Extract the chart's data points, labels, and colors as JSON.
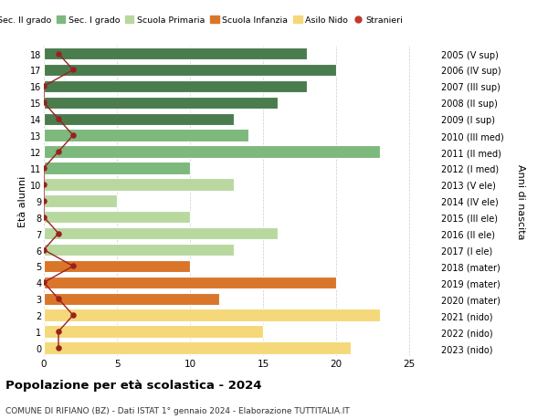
{
  "ages": [
    18,
    17,
    16,
    15,
    14,
    13,
    12,
    11,
    10,
    9,
    8,
    7,
    6,
    5,
    4,
    3,
    2,
    1,
    0
  ],
  "years": [
    "2005 (V sup)",
    "2006 (IV sup)",
    "2007 (III sup)",
    "2008 (II sup)",
    "2009 (I sup)",
    "2010 (III med)",
    "2011 (II med)",
    "2012 (I med)",
    "2013 (V ele)",
    "2014 (IV ele)",
    "2015 (III ele)",
    "2016 (II ele)",
    "2017 (I ele)",
    "2018 (mater)",
    "2019 (mater)",
    "2020 (mater)",
    "2021 (nido)",
    "2022 (nido)",
    "2023 (nido)"
  ],
  "values": [
    18,
    20,
    18,
    16,
    13,
    14,
    23,
    10,
    13,
    5,
    10,
    16,
    13,
    10,
    20,
    12,
    23,
    15,
    21
  ],
  "bar_colors": [
    "#4a7c4e",
    "#4a7c4e",
    "#4a7c4e",
    "#4a7c4e",
    "#4a7c4e",
    "#7db87d",
    "#7db87d",
    "#7db87d",
    "#b8d8a0",
    "#b8d8a0",
    "#b8d8a0",
    "#b8d8a0",
    "#b8d8a0",
    "#d9762a",
    "#d9762a",
    "#d9762a",
    "#f5d87a",
    "#f5d87a",
    "#f5d87a"
  ],
  "stranieri_x": [
    1,
    2,
    0,
    0,
    1,
    2,
    1,
    0,
    0,
    0,
    0,
    1,
    0,
    2,
    0,
    1,
    2,
    1,
    1
  ],
  "xlim": [
    0,
    27
  ],
  "title": "Popolazione per età scolastica - 2024",
  "subtitle": "COMUNE DI RIFIANO (BZ) - Dati ISTAT 1° gennaio 2024 - Elaborazione TUTTITALIA.IT",
  "ylabel": "Età alunni",
  "ylabel2": "Anni di nascita",
  "legend_labels": [
    "Sec. II grado",
    "Sec. I grado",
    "Scuola Primaria",
    "Scuola Infanzia",
    "Asilo Nido",
    "Stranieri"
  ],
  "legend_colors": [
    "#4a7c4e",
    "#7db87d",
    "#b8d8a0",
    "#d9762a",
    "#f5d87a",
    "#c0392b"
  ],
  "bar_height": 0.75,
  "background_color": "#ffffff",
  "grid_color": "#cccccc",
  "stranieri_color": "#9b2020",
  "xticks": [
    0,
    5,
    10,
    15,
    20,
    25
  ]
}
